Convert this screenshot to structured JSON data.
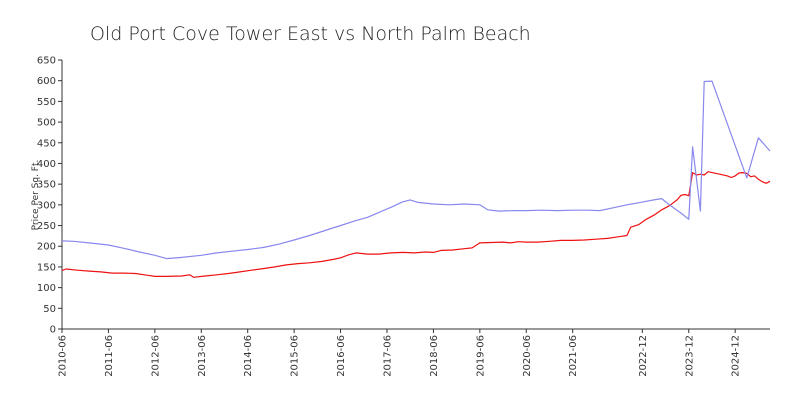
{
  "chart_data": {
    "type": "line",
    "title": "Old Port Cove Tower East vs North Palm Beach",
    "xlabel": "",
    "ylabel": "Price Per Sq. Ft.",
    "ylim": [
      0,
      650
    ],
    "xlim": [
      "2010-06",
      "2025-09"
    ],
    "yticks": [
      0,
      50,
      100,
      150,
      200,
      250,
      300,
      350,
      400,
      450,
      500,
      550,
      600,
      650
    ],
    "xticks": [
      "2010-06",
      "2011-06",
      "2012-06",
      "2013-06",
      "2014-06",
      "2015-06",
      "2016-06",
      "2017-06",
      "2018-06",
      "2019-06",
      "2020-06",
      "2021-06",
      "2022-12",
      "2023-12",
      "2024-12"
    ],
    "grid": false,
    "legend": "none",
    "series": [
      {
        "color": "#ee1111",
        "points": [
          [
            "2010-06",
            141
          ],
          [
            "2010-07",
            145
          ],
          [
            "2010-10",
            142
          ],
          [
            "2011-01",
            140
          ],
          [
            "2011-04",
            138
          ],
          [
            "2011-07",
            135
          ],
          [
            "2011-10",
            135
          ],
          [
            "2012-01",
            134
          ],
          [
            "2012-04",
            130
          ],
          [
            "2012-06",
            127
          ],
          [
            "2012-09",
            127
          ],
          [
            "2013-01",
            128
          ],
          [
            "2013-03",
            131
          ],
          [
            "2013-04",
            125
          ],
          [
            "2013-07",
            128
          ],
          [
            "2013-10",
            131
          ],
          [
            "2014-01",
            134
          ],
          [
            "2014-04",
            138
          ],
          [
            "2014-07",
            142
          ],
          [
            "2014-10",
            146
          ],
          [
            "2015-01",
            150
          ],
          [
            "2015-04",
            155
          ],
          [
            "2015-07",
            158
          ],
          [
            "2015-10",
            160
          ],
          [
            "2016-01",
            163
          ],
          [
            "2016-04",
            168
          ],
          [
            "2016-06",
            172
          ],
          [
            "2016-08",
            179
          ],
          [
            "2016-10",
            184
          ],
          [
            "2017-01",
            181
          ],
          [
            "2017-04",
            181
          ],
          [
            "2017-07",
            184
          ],
          [
            "2017-10",
            185
          ],
          [
            "2018-01",
            184
          ],
          [
            "2018-04",
            186
          ],
          [
            "2018-06",
            185
          ],
          [
            "2018-08",
            190
          ],
          [
            "2018-11",
            191
          ],
          [
            "2019-02",
            194
          ],
          [
            "2019-04",
            196
          ],
          [
            "2019-06",
            208
          ],
          [
            "2019-09",
            209
          ],
          [
            "2019-12",
            210
          ],
          [
            "2020-02",
            208
          ],
          [
            "2020-04",
            211
          ],
          [
            "2020-06",
            210
          ],
          [
            "2020-09",
            210
          ],
          [
            "2020-12",
            212
          ],
          [
            "2021-03",
            214
          ],
          [
            "2021-06",
            214
          ],
          [
            "2021-09",
            215
          ],
          [
            "2021-12",
            217
          ],
          [
            "2022-03",
            219
          ],
          [
            "2022-06",
            223
          ],
          [
            "2022-08",
            226
          ],
          [
            "2022-09",
            246
          ],
          [
            "2022-11",
            252
          ],
          [
            "2023-01",
            265
          ],
          [
            "2023-03",
            275
          ],
          [
            "2023-05",
            288
          ],
          [
            "2023-07",
            298
          ],
          [
            "2023-09",
            312
          ],
          [
            "2023-10",
            323
          ],
          [
            "2023-11",
            325
          ],
          [
            "2023-12",
            322
          ],
          [
            "2024-01",
            378
          ],
          [
            "2024-02",
            372
          ],
          [
            "2024-03",
            374
          ],
          [
            "2024-04",
            372
          ],
          [
            "2024-05",
            380
          ],
          [
            "2024-06",
            378
          ],
          [
            "2024-08",
            374
          ],
          [
            "2024-10",
            370
          ],
          [
            "2024-11",
            366
          ],
          [
            "2024-12",
            370
          ],
          [
            "2025-01",
            377
          ],
          [
            "2025-02",
            378
          ],
          [
            "2025-03",
            376
          ],
          [
            "2025-04",
            368
          ],
          [
            "2025-05",
            370
          ],
          [
            "2025-06",
            362
          ],
          [
            "2025-07",
            356
          ],
          [
            "2025-08",
            352
          ],
          [
            "2025-09",
            357
          ]
        ]
      },
      {
        "color": "#8888ee",
        "points": [
          [
            "2010-06",
            213
          ],
          [
            "2010-09",
            212
          ],
          [
            "2011-01",
            208
          ],
          [
            "2011-06",
            203
          ],
          [
            "2011-10",
            195
          ],
          [
            "2012-02",
            186
          ],
          [
            "2012-06",
            178
          ],
          [
            "2012-09",
            170
          ],
          [
            "2013-01",
            173
          ],
          [
            "2013-06",
            178
          ],
          [
            "2013-10",
            184
          ],
          [
            "2014-02",
            188
          ],
          [
            "2014-06",
            192
          ],
          [
            "2014-10",
            197
          ],
          [
            "2015-02",
            205
          ],
          [
            "2015-06",
            215
          ],
          [
            "2015-10",
            226
          ],
          [
            "2016-02",
            238
          ],
          [
            "2016-06",
            250
          ],
          [
            "2016-10",
            262
          ],
          [
            "2017-01",
            270
          ],
          [
            "2017-04",
            282
          ],
          [
            "2017-07",
            294
          ],
          [
            "2017-10",
            307
          ],
          [
            "2017-12",
            312
          ],
          [
            "2018-02",
            306
          ],
          [
            "2018-06",
            302
          ],
          [
            "2018-10",
            300
          ],
          [
            "2019-02",
            302
          ],
          [
            "2019-06",
            300
          ],
          [
            "2019-08",
            288
          ],
          [
            "2019-11",
            285
          ],
          [
            "2020-03",
            286
          ],
          [
            "2020-06",
            286
          ],
          [
            "2020-10",
            287
          ],
          [
            "2021-02",
            286
          ],
          [
            "2021-06",
            287
          ],
          [
            "2021-10",
            287
          ],
          [
            "2022-01",
            286
          ],
          [
            "2022-04",
            292
          ],
          [
            "2022-08",
            300
          ],
          [
            "2022-11",
            305
          ],
          [
            "2023-03",
            312
          ],
          [
            "2023-05",
            315
          ],
          [
            "2023-07",
            300
          ],
          [
            "2023-10",
            280
          ],
          [
            "2023-12",
            265
          ],
          [
            "2024-01",
            440
          ],
          [
            "2024-03",
            285
          ],
          [
            "2024-04",
            598
          ],
          [
            "2024-06",
            599
          ],
          [
            "2025-03",
            365
          ],
          [
            "2025-06",
            462
          ],
          [
            "2025-09",
            430
          ]
        ]
      }
    ]
  }
}
